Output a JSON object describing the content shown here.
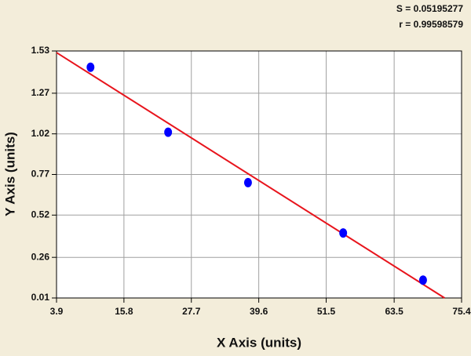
{
  "chart_data": {
    "type": "scatter",
    "annotations": [
      "S = 0.05195277",
      "r = 0.99598579"
    ],
    "x_label": "X Axis (units)",
    "y_label": "Y Axis (units)",
    "points": {
      "x": [
        9.9,
        23.6,
        37.7,
        54.5,
        68.6
      ],
      "y": [
        1.43,
        1.03,
        0.72,
        0.41,
        0.12
      ],
      "color": "#0000ff"
    },
    "fit": {
      "x": [
        3.9,
        72.4
      ],
      "y": [
        1.52,
        0.01
      ],
      "color": "#e8141c"
    },
    "xlim": [
      3.9,
      75.4
    ],
    "xticks": [
      3.9,
      15.8,
      27.7,
      39.6,
      51.5,
      63.5,
      75.4
    ],
    "ylim": [
      0.01,
      1.53
    ],
    "yticks": [
      0.01,
      0.26,
      0.52,
      0.77,
      1.02,
      1.27,
      1.53
    ],
    "grid": true
  }
}
